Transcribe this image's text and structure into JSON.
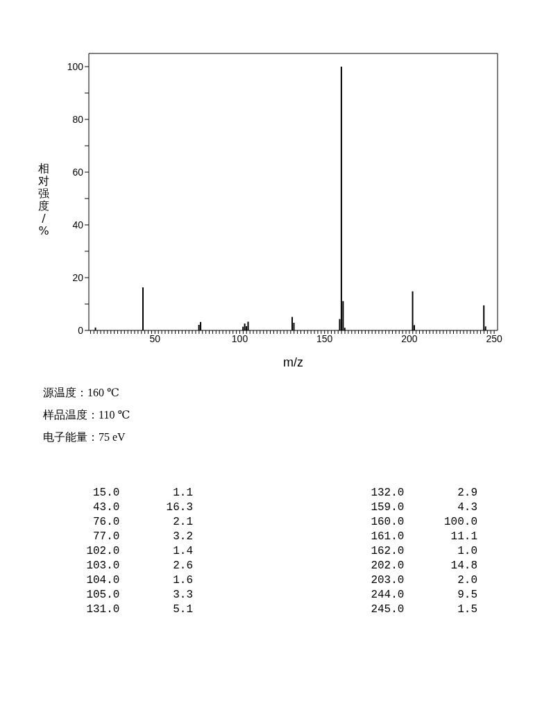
{
  "chart_data": {
    "type": "bar",
    "xlabel": "m/z",
    "ylabel": "相对强度/%",
    "x": [
      15,
      43,
      76,
      77,
      102,
      103,
      104,
      105,
      131,
      132,
      159,
      160,
      161,
      162,
      202,
      203,
      244,
      245
    ],
    "values": [
      1.1,
      16.3,
      2.1,
      3.2,
      1.4,
      2.6,
      1.6,
      3.3,
      5.1,
      2.9,
      4.3,
      100.0,
      11.1,
      1.0,
      14.8,
      2.0,
      9.5,
      1.5
    ],
    "color": "#000000",
    "xlim": [
      11,
      252
    ],
    "ylim": [
      0,
      105
    ],
    "xticks": [
      {
        "value": 12,
        "label": null
      },
      {
        "value": 14,
        "label": null
      },
      {
        "value": 16,
        "label": null
      },
      {
        "value": 18,
        "label": null
      },
      {
        "value": 20,
        "label": null
      },
      {
        "value": 22,
        "label": null
      },
      {
        "value": 24,
        "label": null
      },
      {
        "value": 26,
        "label": null
      },
      {
        "value": 28,
        "label": null
      },
      {
        "value": 30,
        "label": null
      },
      {
        "value": 32,
        "label": null
      },
      {
        "value": 34,
        "label": null
      },
      {
        "value": 36,
        "label": null
      },
      {
        "value": 38,
        "label": null
      },
      {
        "value": 40,
        "label": null
      },
      {
        "value": 42,
        "label": null
      },
      {
        "value": 44,
        "label": null
      },
      {
        "value": 46,
        "label": null
      },
      {
        "value": 48,
        "label": null
      },
      50,
      {
        "value": 52,
        "label": null
      },
      {
        "value": 54,
        "label": null
      },
      {
        "value": 56,
        "label": null
      },
      {
        "value": 58,
        "label": null
      },
      {
        "value": 60,
        "label": null
      },
      {
        "value": 62,
        "label": null
      },
      {
        "value": 64,
        "label": null
      },
      {
        "value": 66,
        "label": null
      },
      {
        "value": 68,
        "label": null
      },
      {
        "value": 70,
        "label": null
      },
      {
        "value": 72,
        "label": null
      },
      {
        "value": 74,
        "label": null
      },
      {
        "value": 76,
        "label": null
      },
      {
        "value": 78,
        "label": null
      },
      {
        "value": 80,
        "label": null
      },
      {
        "value": 82,
        "label": null
      },
      {
        "value": 84,
        "label": null
      },
      {
        "value": 86,
        "label": null
      },
      {
        "value": 88,
        "label": null
      },
      {
        "value": 90,
        "label": null
      },
      {
        "value": 92,
        "label": null
      },
      {
        "value": 94,
        "label": null
      },
      {
        "value": 96,
        "label": null
      },
      {
        "value": 98,
        "label": null
      },
      100,
      {
        "value": 102,
        "label": null
      },
      {
        "value": 104,
        "label": null
      },
      {
        "value": 106,
        "label": null
      },
      {
        "value": 108,
        "label": null
      },
      {
        "value": 110,
        "label": null
      },
      {
        "value": 112,
        "label": null
      },
      {
        "value": 114,
        "label": null
      },
      {
        "value": 116,
        "label": null
      },
      {
        "value": 118,
        "label": null
      },
      {
        "value": 120,
        "label": null
      },
      {
        "value": 122,
        "label": null
      },
      {
        "value": 124,
        "label": null
      },
      {
        "value": 126,
        "label": null
      },
      {
        "value": 128,
        "label": null
      },
      {
        "value": 130,
        "label": null
      },
      {
        "value": 132,
        "label": null
      },
      {
        "value": 134,
        "label": null
      },
      {
        "value": 136,
        "label": null
      },
      {
        "value": 138,
        "label": null
      },
      {
        "value": 140,
        "label": null
      },
      {
        "value": 142,
        "label": null
      },
      {
        "value": 144,
        "label": null
      },
      {
        "value": 146,
        "label": null
      },
      {
        "value": 148,
        "label": null
      },
      150,
      {
        "value": 152,
        "label": null
      },
      {
        "value": 154,
        "label": null
      },
      {
        "value": 156,
        "label": null
      },
      {
        "value": 158,
        "label": null
      },
      {
        "value": 160,
        "label": null
      },
      {
        "value": 162,
        "label": null
      },
      {
        "value": 164,
        "label": null
      },
      {
        "value": 166,
        "label": null
      },
      {
        "value": 168,
        "label": null
      },
      {
        "value": 170,
        "label": null
      },
      {
        "value": 172,
        "label": null
      },
      {
        "value": 174,
        "label": null
      },
      {
        "value": 176,
        "label": null
      },
      {
        "value": 178,
        "label": null
      },
      {
        "value": 180,
        "label": null
      },
      {
        "value": 182,
        "label": null
      },
      {
        "value": 184,
        "label": null
      },
      {
        "value": 186,
        "label": null
      },
      {
        "value": 188,
        "label": null
      },
      {
        "value": 190,
        "label": null
      },
      {
        "value": 192,
        "label": null
      },
      {
        "value": 194,
        "label": null
      },
      {
        "value": 196,
        "label": null
      },
      {
        "value": 198,
        "label": null
      },
      200,
      {
        "value": 202,
        "label": null
      },
      {
        "value": 204,
        "label": null
      },
      {
        "value": 206,
        "label": null
      },
      {
        "value": 208,
        "label": null
      },
      {
        "value": 210,
        "label": null
      },
      {
        "value": 212,
        "label": null
      },
      {
        "value": 214,
        "label": null
      },
      {
        "value": 216,
        "label": null
      },
      {
        "value": 218,
        "label": null
      },
      {
        "value": 220,
        "label": null
      },
      {
        "value": 222,
        "label": null
      },
      {
        "value": 224,
        "label": null
      },
      {
        "value": 226,
        "label": null
      },
      {
        "value": 228,
        "label": null
      },
      {
        "value": 230,
        "label": null
      },
      {
        "value": 232,
        "label": null
      },
      {
        "value": 234,
        "label": null
      },
      {
        "value": 236,
        "label": null
      },
      {
        "value": 238,
        "label": null
      },
      {
        "value": 240,
        "label": null
      },
      {
        "value": 242,
        "label": null
      },
      {
        "value": 244,
        "label": null
      },
      {
        "value": 246,
        "label": null
      },
      {
        "value": 248,
        "label": null
      },
      250
    ],
    "yticks": [
      0,
      {
        "value": 10,
        "label": null
      },
      20,
      {
        "value": 30,
        "label": null
      },
      40,
      {
        "value": 50,
        "label": null
      },
      60,
      {
        "value": 70,
        "label": null
      },
      80,
      {
        "value": 90,
        "label": null
      },
      100
    ],
    "grid": false,
    "legend": false,
    "annotations": [
      "源温度：160 ℃",
      "样品温度：110 ℃",
      "电子能量：75 eV",
      "15.0        1.1",
      "43.0       16.3",
      "76.0        2.1",
      "77.0        3.2",
      "102.0        1.4",
      "103.0        2.6",
      "104.0        1.6",
      "105.0        3.3",
      "131.0        5.1",
      "132.0        2.9",
      "159.0        4.3",
      "160.0      100.0",
      "161.0       11.1",
      "162.0        1.0",
      "202.0       14.8",
      "203.0        2.0",
      "244.0        9.5",
      "245.0        1.5"
    ]
  }
}
